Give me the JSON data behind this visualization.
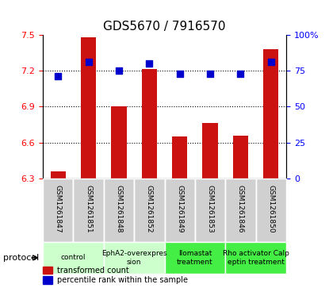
{
  "title": "GDS5670 / 7916570",
  "samples": [
    "GSM1261847",
    "GSM1261851",
    "GSM1261848",
    "GSM1261852",
    "GSM1261849",
    "GSM1261853",
    "GSM1261846",
    "GSM1261850"
  ],
  "red_values": [
    6.36,
    7.48,
    6.9,
    7.21,
    6.65,
    6.76,
    6.66,
    7.38
  ],
  "blue_values": [
    71,
    81,
    75,
    80,
    73,
    73,
    73,
    81
  ],
  "protocols": [
    {
      "label": "control",
      "spans": [
        0,
        2
      ],
      "color": "#ccffcc"
    },
    {
      "label": "EphA2-overexpres\nsion",
      "spans": [
        2,
        4
      ],
      "color": "#ccffcc"
    },
    {
      "label": "llomastat\ntreatment",
      "spans": [
        4,
        6
      ],
      "color": "#44ee44"
    },
    {
      "label": "Rho activator Calp\neptin treatment",
      "spans": [
        6,
        8
      ],
      "color": "#44ee44"
    }
  ],
  "ylim_left": [
    6.3,
    7.5
  ],
  "ylim_right": [
    0,
    100
  ],
  "yticks_left": [
    6.3,
    6.6,
    6.9,
    7.2,
    7.5
  ],
  "yticks_right": [
    0,
    25,
    50,
    75,
    100
  ],
  "ytick_labels_left": [
    "6.3",
    "6.6",
    "6.9",
    "7.2",
    "7.5"
  ],
  "ytick_labels_right": [
    "0",
    "25",
    "50",
    "75",
    "100%"
  ],
  "bar_color": "#cc1111",
  "dot_color": "#0000cc",
  "bar_width": 0.5,
  "legend_red": "transformed count",
  "legend_blue": "percentile rank within the sample",
  "protocol_label": "protocol"
}
